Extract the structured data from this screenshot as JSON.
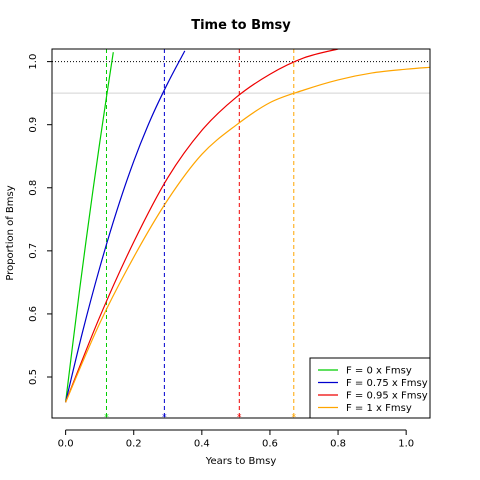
{
  "chart_data": {
    "type": "line",
    "title": "Time to Bmsy",
    "xlabel": "Years to Bmsy",
    "ylabel": "Proportion of Bmsy",
    "xlim": [
      -0.04,
      1.07
    ],
    "ylim": [
      0.435,
      1.02
    ],
    "xticks": [
      "0.0",
      "0.2",
      "0.4",
      "0.6",
      "0.8",
      "1.0"
    ],
    "yticks": [
      "0.5",
      "0.6",
      "0.7",
      "0.8",
      "0.9",
      "1.0"
    ],
    "hlines": [
      {
        "y": 1.0,
        "style": "dotted",
        "color": "#000000"
      },
      {
        "y": 0.95,
        "style": "solid",
        "color": "#d3d3d3"
      }
    ],
    "legend_position": "bottom-right",
    "series": [
      {
        "name": "F = 0 x Fmsy",
        "color": "#00cd00",
        "x": [
          0,
          0.02,
          0.04,
          0.06,
          0.08,
          0.1,
          0.12,
          0.14
        ],
        "y": [
          0.46,
          0.548,
          0.634,
          0.716,
          0.795,
          0.871,
          0.944,
          1.015
        ],
        "vline": 0.12
      },
      {
        "name": "F = 0.75 x Fmsy",
        "color": "#0000cd",
        "x": [
          0,
          0.05,
          0.1,
          0.15,
          0.2,
          0.25,
          0.3,
          0.35
        ],
        "y": [
          0.46,
          0.572,
          0.673,
          0.763,
          0.842,
          0.909,
          0.966,
          1.017
        ],
        "vline": 0.29
      },
      {
        "name": "F = 0.95 x Fmsy",
        "color": "#ee0000",
        "x": [
          0,
          0.1,
          0.2,
          0.3,
          0.4,
          0.5,
          0.6,
          0.7,
          0.8
        ],
        "y": [
          0.46,
          0.595,
          0.714,
          0.816,
          0.891,
          0.943,
          0.98,
          1.006,
          1.02
        ],
        "vline": 0.51
      },
      {
        "name": "F = 1 x Fmsy",
        "color": "#ffa500",
        "x": [
          0,
          0.1,
          0.2,
          0.3,
          0.4,
          0.5,
          0.6,
          0.7,
          0.8,
          0.9,
          1.0,
          1.07
        ],
        "y": [
          0.46,
          0.585,
          0.69,
          0.781,
          0.853,
          0.899,
          0.935,
          0.955,
          0.971,
          0.982,
          0.988,
          0.991
        ],
        "vline": 0.67
      }
    ]
  }
}
